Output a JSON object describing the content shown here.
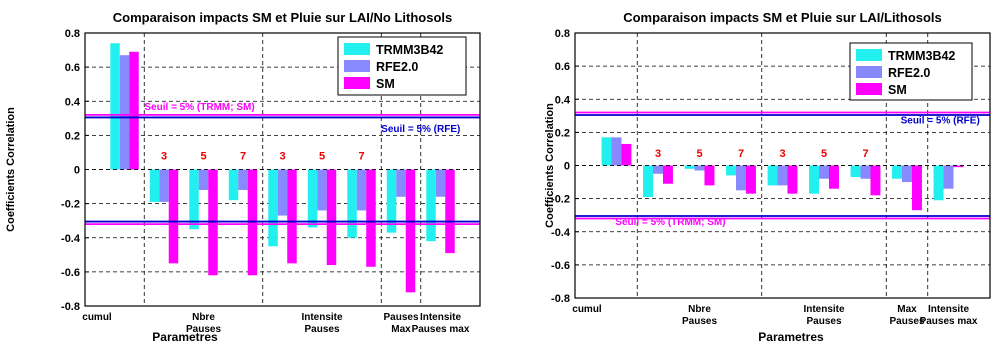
{
  "chart_data": [
    {
      "type": "bar",
      "title": "Comparaison impacts SM et Pluie  sur LAI/No Lithosols",
      "xlabel": "Parametres",
      "ylabel": "Coefficients Correlation",
      "ylim": [
        -0.8,
        0.8
      ],
      "yticks": [
        "0.8",
        "0.6",
        "0.4",
        "0.2",
        "0",
        "-0.2",
        "-0.4",
        "-0.6",
        "-0.8"
      ],
      "grid": true,
      "legend_position": "top-right",
      "series": [
        {
          "name": "TRMM3B42",
          "color": "#22f0f0",
          "values": [
            0.74,
            -0.19,
            -0.35,
            -0.18,
            -0.45,
            -0.34,
            -0.4,
            -0.37,
            -0.42
          ]
        },
        {
          "name": "RFE2.0",
          "color": "#8888ff",
          "values": [
            0.67,
            -0.19,
            -0.12,
            -0.12,
            -0.27,
            -0.24,
            -0.24,
            -0.16,
            -0.16
          ]
        },
        {
          "name": "SM",
          "color": "#ff00ff",
          "values": [
            0.69,
            -0.55,
            -0.62,
            -0.62,
            -0.55,
            -0.56,
            -0.57,
            -0.72,
            -0.49
          ]
        }
      ],
      "group_labels": [
        {
          "lines": [
            "cumul"
          ],
          "at": 0
        },
        {
          "lines": [
            "Nbre",
            "Pauses"
          ],
          "at": 2
        },
        {
          "lines": [
            "Intensite",
            "Pauses"
          ],
          "at": 5
        },
        {
          "lines": [
            "Pauses",
            "Max"
          ],
          "at": 7
        },
        {
          "lines": [
            "Intensite",
            "Pauses max"
          ],
          "at": 8
        }
      ],
      "group_boundaries": [
        0.5,
        3.5,
        6.5,
        7.5
      ],
      "window_annotations": [
        {
          "text": "3",
          "at": 1
        },
        {
          "text": "5",
          "at": 2
        },
        {
          "text": "7",
          "at": 3
        },
        {
          "text": "3",
          "at": 4
        },
        {
          "text": "5",
          "at": 5
        },
        {
          "text": "7",
          "at": 6
        }
      ],
      "annotation_y": 0.06,
      "threshold_lines": [
        {
          "value": 0.32,
          "color": "#ff00ff"
        },
        {
          "value": 0.305,
          "color": "#0000cc"
        },
        {
          "value": -0.305,
          "color": "#0000cc"
        },
        {
          "value": -0.32,
          "color": "#ff00ff"
        }
      ],
      "threshold_labels": [
        {
          "text": "Seuil = 5% (TRMM; SM)",
          "color": "#ff00ff",
          "y": 0.35,
          "at": 1.9
        },
        {
          "text": "Seuil = 5% (RFE)",
          "color": "#0000cc",
          "y": 0.22,
          "at": 7.5
        }
      ]
    },
    {
      "type": "bar",
      "title": "Comparaison impacts SM et Pluie  sur LAI/Lithosols",
      "xlabel": "Parametres",
      "ylabel": "Coefficients Correlation",
      "ylim": [
        -0.8,
        0.8
      ],
      "yticks": [
        "0.8",
        "0.6",
        "0.4",
        "0.2",
        "0",
        "-0.2",
        "-0.4",
        "-0.6",
        "-0.8"
      ],
      "grid": true,
      "legend_position": "top-right",
      "series": [
        {
          "name": "TRMM3B42",
          "color": "#22f0f0",
          "values": [
            0.17,
            -0.19,
            -0.02,
            -0.06,
            -0.12,
            -0.17,
            -0.07,
            -0.08,
            -0.21
          ]
        },
        {
          "name": "RFE2.0",
          "color": "#8888ff",
          "values": [
            0.17,
            -0.05,
            -0.03,
            -0.15,
            -0.12,
            -0.08,
            -0.08,
            -0.1,
            -0.14
          ]
        },
        {
          "name": "SM",
          "color": "#ff00ff",
          "values": [
            0.13,
            -0.11,
            -0.12,
            -0.17,
            -0.17,
            -0.14,
            -0.18,
            -0.27,
            -0.01
          ]
        }
      ],
      "group_labels": [
        {
          "lines": [
            "cumul"
          ],
          "at": 0
        },
        {
          "lines": [
            "Nbre",
            "Pauses"
          ],
          "at": 2
        },
        {
          "lines": [
            "Intensite",
            "Pauses"
          ],
          "at": 5
        },
        {
          "lines": [
            "Max",
            "Pauses"
          ],
          "at": 7
        },
        {
          "lines": [
            "Intensite",
            "Pauses max"
          ],
          "at": 8
        }
      ],
      "group_boundaries": [
        0.5,
        3.5,
        6.5,
        7.5
      ],
      "window_annotations": [
        {
          "text": "3",
          "at": 1
        },
        {
          "text": "5",
          "at": 2
        },
        {
          "text": "7",
          "at": 3
        },
        {
          "text": "3",
          "at": 4
        },
        {
          "text": "5",
          "at": 5
        },
        {
          "text": "7",
          "at": 6
        }
      ],
      "annotation_y": 0.05,
      "threshold_lines": [
        {
          "value": 0.32,
          "color": "#ff00ff"
        },
        {
          "value": 0.305,
          "color": "#0000cc"
        },
        {
          "value": -0.305,
          "color": "#0000cc"
        },
        {
          "value": -0.32,
          "color": "#ff00ff"
        }
      ],
      "threshold_labels": [
        {
          "text": "Seuil = 5% (RFE)",
          "color": "#0000cc",
          "y": 0.255,
          "at": 7.8
        },
        {
          "text": "Seuil = 5% (TRMM; SM)",
          "color": "#ff00ff",
          "y": -0.36,
          "at": 1.3
        }
      ]
    }
  ]
}
